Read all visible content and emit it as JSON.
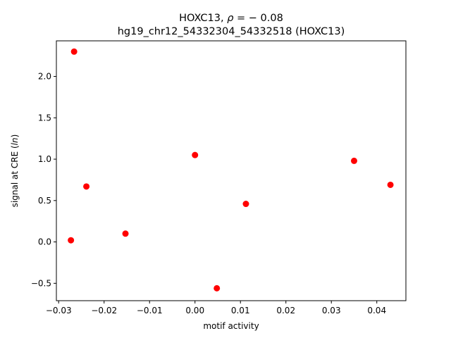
{
  "chart_data": {
    "type": "scatter",
    "title_line1": "HOXC13, ",
    "title_rho": "ρ",
    "title_rho_value": " = − 0.08",
    "title_line2": "hg19_chr12_54332304_54332518 (HOXC13)",
    "xlabel": "motif activity",
    "ylabel_prefix": "signal at CRE (",
    "ylabel_italic": "ln",
    "ylabel_suffix": ")",
    "xlim": [
      -0.0305,
      0.0464
    ],
    "ylim": [
      -0.71,
      2.43
    ],
    "xticks": [
      {
        "value": -0.03,
        "label": "−0.03"
      },
      {
        "value": -0.02,
        "label": "−0.02"
      },
      {
        "value": -0.01,
        "label": "−0.01"
      },
      {
        "value": 0.0,
        "label": "0.00"
      },
      {
        "value": 0.01,
        "label": "0.01"
      },
      {
        "value": 0.02,
        "label": "0.02"
      },
      {
        "value": 0.03,
        "label": "0.03"
      },
      {
        "value": 0.04,
        "label": "0.04"
      }
    ],
    "yticks": [
      {
        "value": -0.5,
        "label": "−0.5"
      },
      {
        "value": 0.0,
        "label": "0.0"
      },
      {
        "value": 0.5,
        "label": "0.5"
      },
      {
        "value": 1.0,
        "label": "1.0"
      },
      {
        "value": 1.5,
        "label": "1.5"
      },
      {
        "value": 2.0,
        "label": "2.0"
      }
    ],
    "grid": false,
    "marker_color": "#ff0000",
    "points": [
      {
        "x": -0.0266,
        "y": 2.3
      },
      {
        "x": -0.0273,
        "y": 0.02
      },
      {
        "x": -0.0239,
        "y": 0.67
      },
      {
        "x": -0.0153,
        "y": 0.1
      },
      {
        "x": 0.0,
        "y": 1.05
      },
      {
        "x": 0.0048,
        "y": -0.56
      },
      {
        "x": 0.0112,
        "y": 0.46
      },
      {
        "x": 0.035,
        "y": 0.98
      },
      {
        "x": 0.043,
        "y": 0.69
      }
    ]
  }
}
